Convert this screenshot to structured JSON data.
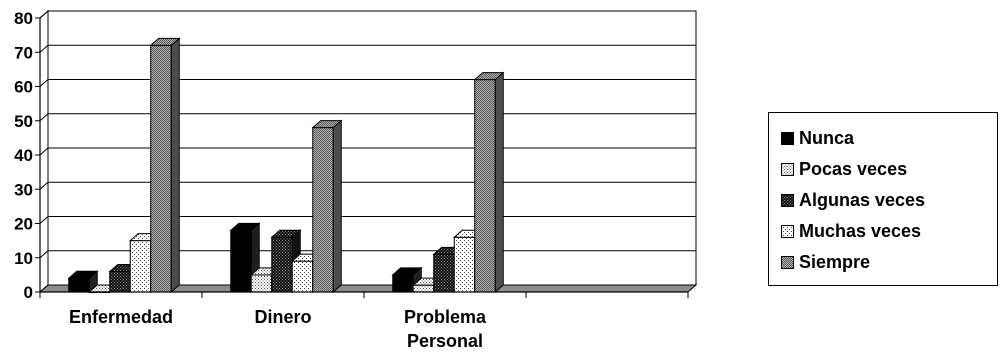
{
  "chart_data": {
    "type": "bar",
    "categories": [
      "Enfermedad",
      "Dinero",
      "Problema Personal"
    ],
    "series": [
      {
        "name": "Nunca",
        "values": [
          4,
          18,
          5
        ],
        "color": "#000000",
        "pattern": "solid"
      },
      {
        "name": "Pocas veces",
        "values": [
          0,
          5,
          2
        ],
        "color": "#d9d9d9",
        "pattern": "dots-light"
      },
      {
        "name": "Algunas veces",
        "values": [
          6,
          16,
          11
        ],
        "color": "#202020",
        "pattern": "dots-dark"
      },
      {
        "name": "Muchas veces",
        "values": [
          15,
          9,
          16
        ],
        "color": "#f2f2f2",
        "pattern": "dots-sparse"
      },
      {
        "name": "Siempre",
        "values": [
          72,
          48,
          62
        ],
        "color": "#8c8c8c",
        "pattern": "checker"
      }
    ],
    "yticks": [
      0,
      10,
      20,
      30,
      40,
      50,
      60,
      70,
      80
    ],
    "ylim": [
      0,
      80
    ],
    "grid": true,
    "legend_position": "right",
    "style": "3d-clustered-bar"
  }
}
